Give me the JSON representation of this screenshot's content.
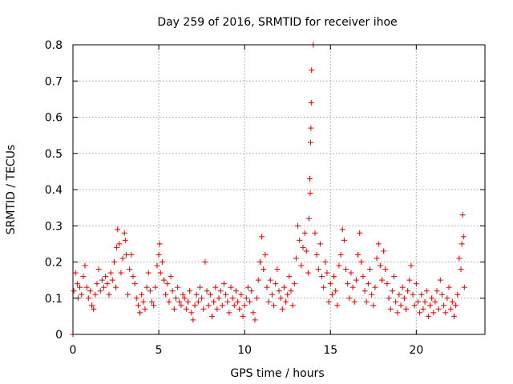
{
  "chart_data": {
    "type": "scatter",
    "title": "Day 259 of 2016, SRMTID for receiver ihoe",
    "xlabel": "GPS time / hours",
    "ylabel": "SRMTID / TECUs",
    "xlim": [
      0,
      24
    ],
    "ylim": [
      0,
      0.8
    ],
    "x_ticks": [
      0,
      5,
      10,
      15,
      20
    ],
    "x_tick_labels": [
      "0",
      "5",
      "10",
      "15",
      "20"
    ],
    "y_ticks": [
      0,
      0.1,
      0.2,
      0.3,
      0.4,
      0.5,
      0.6,
      0.7,
      0.8
    ],
    "y_tick_labels": [
      "0",
      "0.1",
      "0.2",
      "0.3",
      "0.4",
      "0.5",
      "0.6",
      "0.7",
      "0.8"
    ],
    "grid": true,
    "marker": "+",
    "color": "#e00000",
    "series": [
      {
        "name": "SRMTID",
        "x": [
          0.0,
          0.05,
          0.15,
          0.25,
          0.3,
          0.4,
          0.5,
          0.6,
          0.7,
          0.8,
          0.9,
          1.0,
          1.1,
          1.2,
          1.3,
          1.4,
          1.5,
          1.6,
          1.7,
          1.8,
          1.9,
          2.0,
          2.1,
          2.2,
          2.3,
          2.4,
          2.5,
          2.55,
          2.6,
          2.7,
          2.8,
          2.9,
          3.0,
          3.05,
          3.1,
          3.2,
          3.3,
          3.4,
          3.5,
          3.6,
          3.7,
          3.8,
          3.9,
          4.0,
          4.1,
          4.2,
          4.3,
          4.4,
          4.5,
          4.6,
          4.7,
          4.8,
          4.9,
          5.0,
          5.05,
          5.1,
          5.2,
          5.3,
          5.4,
          5.5,
          5.6,
          5.7,
          5.8,
          5.9,
          6.0,
          6.1,
          6.2,
          6.3,
          6.4,
          6.5,
          6.6,
          6.7,
          6.8,
          6.9,
          7.0,
          7.1,
          7.2,
          7.3,
          7.4,
          7.5,
          7.6,
          7.7,
          7.8,
          7.9,
          8.0,
          8.1,
          8.2,
          8.3,
          8.4,
          8.5,
          8.6,
          8.7,
          8.8,
          8.9,
          9.0,
          9.1,
          9.2,
          9.3,
          9.4,
          9.5,
          9.6,
          9.7,
          9.8,
          9.9,
          10.0,
          10.1,
          10.2,
          10.3,
          10.4,
          10.5,
          10.6,
          10.7,
          10.8,
          10.9,
          11.0,
          11.1,
          11.2,
          11.3,
          11.4,
          11.5,
          11.6,
          11.7,
          11.8,
          11.9,
          12.0,
          12.1,
          12.2,
          12.3,
          12.4,
          12.5,
          12.6,
          12.7,
          12.8,
          12.9,
          13.0,
          13.1,
          13.2,
          13.3,
          13.4,
          13.5,
          13.6,
          13.7,
          13.75,
          13.8,
          13.82,
          13.84,
          13.86,
          13.88,
          13.9,
          14.0,
          14.1,
          14.2,
          14.3,
          14.4,
          14.5,
          14.6,
          14.7,
          14.8,
          14.9,
          15.0,
          15.1,
          15.2,
          15.3,
          15.4,
          15.5,
          15.6,
          15.7,
          15.8,
          15.9,
          16.0,
          16.1,
          16.2,
          16.3,
          16.4,
          16.5,
          16.6,
          16.7,
          16.8,
          16.9,
          17.0,
          17.1,
          17.2,
          17.3,
          17.4,
          17.5,
          17.6,
          17.7,
          17.8,
          17.9,
          18.0,
          18.1,
          18.2,
          18.3,
          18.4,
          18.5,
          18.6,
          18.7,
          18.8,
          18.9,
          19.0,
          19.1,
          19.2,
          19.3,
          19.4,
          19.5,
          19.6,
          19.7,
          19.8,
          19.9,
          20.0,
          20.1,
          20.2,
          20.3,
          20.4,
          20.5,
          20.6,
          20.7,
          20.8,
          20.9,
          21.0,
          21.1,
          21.2,
          21.3,
          21.4,
          21.5,
          21.6,
          21.7,
          21.8,
          21.9,
          22.0,
          22.1,
          22.2,
          22.3,
          22.4,
          22.5,
          22.6,
          22.65,
          22.7,
          22.75,
          22.8
        ],
        "y": [
          0.0,
          0.12,
          0.17,
          0.14,
          0.1,
          0.13,
          0.11,
          0.16,
          0.19,
          0.13,
          0.1,
          0.12,
          0.08,
          0.07,
          0.11,
          0.14,
          0.18,
          0.12,
          0.15,
          0.13,
          0.16,
          0.14,
          0.11,
          0.17,
          0.15,
          0.2,
          0.13,
          0.24,
          0.29,
          0.25,
          0.17,
          0.21,
          0.28,
          0.26,
          0.22,
          0.11,
          0.18,
          0.22,
          0.16,
          0.14,
          0.1,
          0.08,
          0.06,
          0.11,
          0.09,
          0.07,
          0.13,
          0.17,
          0.12,
          0.09,
          0.08,
          0.13,
          0.19,
          0.22,
          0.25,
          0.17,
          0.2,
          0.15,
          0.11,
          0.14,
          0.09,
          0.16,
          0.12,
          0.07,
          0.1,
          0.13,
          0.09,
          0.08,
          0.11,
          0.1,
          0.07,
          0.09,
          0.12,
          0.06,
          0.04,
          0.08,
          0.11,
          0.09,
          0.13,
          0.1,
          0.07,
          0.2,
          0.12,
          0.08,
          0.11,
          0.05,
          0.09,
          0.13,
          0.07,
          0.1,
          0.12,
          0.08,
          0.14,
          0.11,
          0.09,
          0.06,
          0.13,
          0.1,
          0.08,
          0.12,
          0.09,
          0.07,
          0.11,
          0.05,
          0.08,
          0.1,
          0.13,
          0.09,
          0.12,
          0.06,
          0.04,
          0.1,
          0.15,
          0.2,
          0.27,
          0.18,
          0.22,
          0.13,
          0.09,
          0.15,
          0.11,
          0.08,
          0.14,
          0.18,
          0.12,
          0.1,
          0.07,
          0.13,
          0.09,
          0.11,
          0.16,
          0.12,
          0.08,
          0.14,
          0.21,
          0.3,
          0.26,
          0.19,
          0.24,
          0.28,
          0.23,
          0.17,
          0.32,
          0.43,
          0.39,
          0.53,
          0.57,
          0.64,
          0.73,
          0.8,
          0.28,
          0.22,
          0.18,
          0.25,
          0.16,
          0.13,
          0.2,
          0.17,
          0.09,
          0.14,
          0.11,
          0.16,
          0.12,
          0.08,
          0.19,
          0.22,
          0.29,
          0.26,
          0.18,
          0.14,
          0.1,
          0.17,
          0.13,
          0.09,
          0.15,
          0.22,
          0.28,
          0.2,
          0.16,
          0.12,
          0.09,
          0.14,
          0.18,
          0.11,
          0.08,
          0.13,
          0.21,
          0.25,
          0.19,
          0.15,
          0.23,
          0.18,
          0.14,
          0.1,
          0.07,
          0.12,
          0.16,
          0.09,
          0.06,
          0.11,
          0.08,
          0.13,
          0.1,
          0.07,
          0.12,
          0.15,
          0.19,
          0.11,
          0.08,
          0.14,
          0.09,
          0.06,
          0.11,
          0.07,
          0.09,
          0.12,
          0.05,
          0.08,
          0.1,
          0.06,
          0.09,
          0.12,
          0.07,
          0.15,
          0.11,
          0.08,
          0.06,
          0.1,
          0.13,
          0.07,
          0.09,
          0.05,
          0.08,
          0.11,
          0.21,
          0.18,
          0.25,
          0.33,
          0.27,
          0.13
        ]
      }
    ]
  }
}
